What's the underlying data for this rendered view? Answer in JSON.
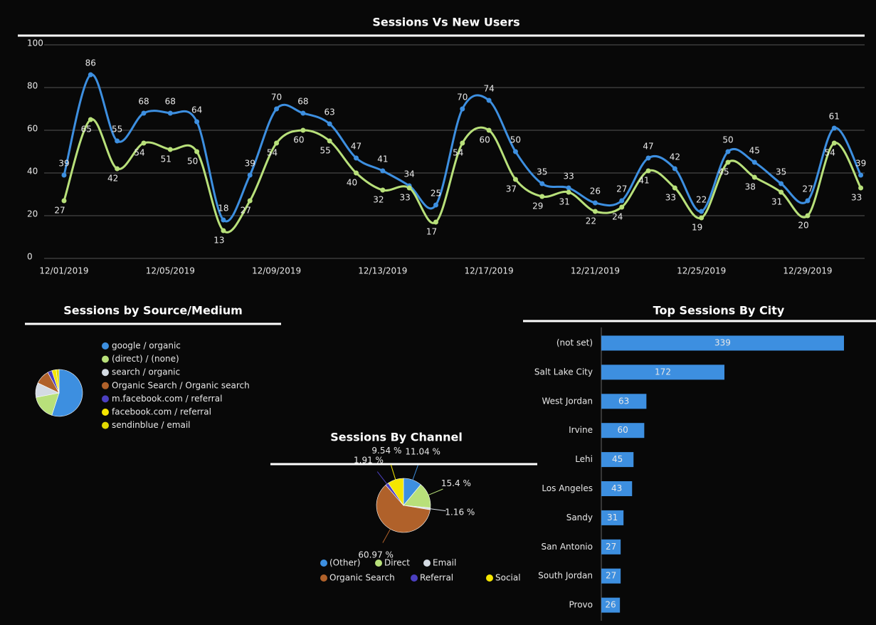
{
  "chart_data": [
    {
      "type": "line",
      "title": "Sessions Vs New Users",
      "categories": [
        "12/01/2019",
        null,
        null,
        null,
        "12/05/2019",
        null,
        null,
        null,
        "12/09/2019",
        null,
        null,
        null,
        "12/13/2019",
        null,
        null,
        null,
        "12/17/2019",
        null,
        null,
        null,
        "12/21/2019",
        null,
        null,
        null,
        "12/25/2019",
        null,
        null,
        null,
        "12/29/2019",
        null,
        null
      ],
      "series": [
        {
          "color": "#3d8fe0",
          "values": [
            39,
            86,
            55,
            68,
            68,
            64,
            18,
            39,
            70,
            68,
            63,
            47,
            41,
            34,
            25,
            70,
            74,
            50,
            35,
            33,
            26,
            27,
            47,
            42,
            22,
            50,
            45,
            35,
            27,
            61,
            39
          ]
        },
        {
          "color": "#b8e07a",
          "values": [
            27,
            65,
            42,
            54,
            51,
            50,
            13,
            27,
            54,
            60,
            55,
            40,
            32,
            33,
            17,
            54,
            60,
            37,
            29,
            31,
            22,
            24,
            41,
            33,
            19,
            45,
            38,
            31,
            20,
            54,
            33
          ]
        }
      ],
      "ylim": [
        0,
        100
      ],
      "yticks": [
        0,
        20,
        40,
        60,
        80,
        100
      ],
      "grid": true
    },
    {
      "type": "pie",
      "title": "Sessions by Source/Medium",
      "categories": [
        "google / organic",
        "(direct) / (none)",
        "search / organic",
        "Organic Search / Organic search",
        "m.facebook.com / referral",
        "facebook.com / referral",
        "sendinblue / email"
      ],
      "values": [
        55,
        17,
        10,
        10,
        3,
        3,
        2
      ],
      "colors": [
        "#3d8fe0",
        "#b8e07a",
        "#d4dbe3",
        "#b0612a",
        "#4b3fc0",
        "#f5e600",
        "#e0d800"
      ]
    },
    {
      "type": "pie",
      "title": "Sessions By Channel",
      "categories": [
        "(Other)",
        "Direct",
        "Email",
        "Organic Search",
        "Referral",
        "Social"
      ],
      "values": [
        11.04,
        15.4,
        1.16,
        60.97,
        1.91,
        9.54
      ],
      "value_labels": [
        "11.04 %",
        "15.4 %",
        "1.16 %",
        "60.97 %",
        "1.91 %",
        "9.54 %"
      ],
      "colors": [
        "#3d8fe0",
        "#b8e07a",
        "#d4dbe3",
        "#b0612a",
        "#4b3fc0",
        "#f5e600"
      ]
    },
    {
      "type": "barh",
      "title": "Top Sessions By City",
      "categories": [
        "(not set)",
        "Salt Lake City",
        "West Jordan",
        "Irvine",
        "Lehi",
        "Los Angeles",
        "Sandy",
        "San Antonio",
        "South Jordan",
        "Provo"
      ],
      "values": [
        339,
        172,
        63,
        60,
        45,
        43,
        31,
        27,
        27,
        26
      ],
      "color": "#3d8fe0",
      "xlim": [
        0,
        340
      ]
    }
  ]
}
